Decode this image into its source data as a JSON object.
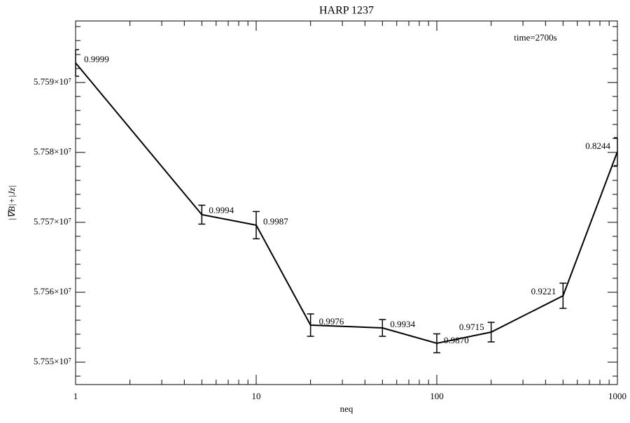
{
  "chart_data": {
    "type": "line",
    "title": "HARP 1237",
    "xlabel": "neq",
    "ylabel": "|∇B|+|Jz|",
    "annotation": "time=2700s",
    "x": [
      1,
      5,
      10,
      20,
      50,
      100,
      200,
      500,
      1000
    ],
    "values": [
      57592800,
      57571100,
      57569600,
      57555300,
      57554900,
      57552700,
      57554300,
      57559500,
      57580100
    ],
    "errors": [
      1900,
      1350,
      1950,
      1600,
      1200,
      1350,
      1400,
      1800,
      2000
    ],
    "point_labels": [
      "0.9999",
      "0.9994",
      "0.9987",
      "0.9976",
      "0.9934",
      "0.9870",
      "0.9715",
      "0.9221",
      "0.8244"
    ],
    "color": "#000000",
    "xscale": "log",
    "xlim": [
      1,
      1000
    ],
    "xticks": [
      1,
      10,
      100,
      1000
    ],
    "ylim": [
      57546800,
      57598800
    ],
    "yticks": [
      {
        "value": 57550000,
        "label": "5.755×10⁷"
      },
      {
        "value": 57560000,
        "label": "5.756×10⁷"
      },
      {
        "value": 57570000,
        "label": "5.757×10⁷"
      },
      {
        "value": 57580000,
        "label": "5.758×10⁷"
      },
      {
        "value": 57590000,
        "label": "5.759×10⁷"
      }
    ]
  }
}
